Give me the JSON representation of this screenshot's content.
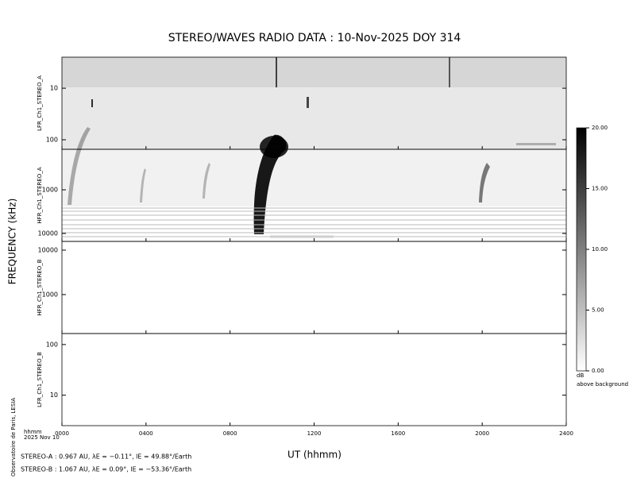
{
  "title": "STEREO/WAVES  RADIO  DATA : 10-Nov-2025  DOY 314",
  "y_label": "FREQUENCY (kHz)",
  "x_label": "UT (hhmm)",
  "corner_label": "hhmm",
  "date_label": "2025 Nov 10",
  "credit": "Observatoire de Paris, LESIA",
  "footer": [
    "STEREO-A : 0.967 AU, λE = −0.11°, lE = 49.88°/Earth",
    "STEREO-B : 1.067 AU, λE = 0.09°, lE = −53.36°/Earth"
  ],
  "chart_data": [
    {
      "type": "spectrogram",
      "name": "LFR_Ch1_STEREO_A",
      "log_y": true,
      "ylim": [
        153,
        2.5
      ],
      "yticks": [
        10,
        100
      ],
      "xlim": [
        0,
        24
      ],
      "xticks": [
        {
          "value": 0,
          "label": "0000"
        },
        {
          "value": 4,
          "label": "0400"
        },
        {
          "value": 8,
          "label": "0800"
        },
        {
          "value": 12,
          "label": "1200"
        },
        {
          "value": 16,
          "label": "1600"
        },
        {
          "value": 20,
          "label": "2000"
        },
        {
          "value": 24,
          "label": "2400"
        }
      ]
    },
    {
      "type": "spectrogram",
      "name": "HFR_Ch1_STEREO_A",
      "log_y": true,
      "ylim": [
        15200,
        118
      ],
      "yticks": [
        1000,
        10000
      ],
      "xlim": [
        0,
        24
      ],
      "xticks": [
        {
          "value": 0,
          "label": "0000"
        },
        {
          "value": 4,
          "label": "0400"
        },
        {
          "value": 8,
          "label": "0800"
        },
        {
          "value": 12,
          "label": "1200"
        },
        {
          "value": 16,
          "label": "1600"
        },
        {
          "value": 20,
          "label": "2000"
        },
        {
          "value": 24,
          "label": "2400"
        }
      ]
    },
    {
      "type": "spectrogram",
      "name": "HFR_Ch1_STEREO_B",
      "log_y": true,
      "ylim": [
        133,
        15700
      ],
      "yticks": [
        1000,
        10000
      ],
      "xlim": [
        0,
        24
      ],
      "xticks": [
        {
          "value": 0,
          "label": "0000"
        },
        {
          "value": 4,
          "label": "0400"
        },
        {
          "value": 8,
          "label": "0800"
        },
        {
          "value": 12,
          "label": "1200"
        },
        {
          "value": 16,
          "label": "1600"
        },
        {
          "value": 20,
          "label": "2000"
        },
        {
          "value": 24,
          "label": "2400"
        }
      ]
    },
    {
      "type": "spectrogram",
      "name": "LFR_Ch1_STEREO_B",
      "log_y": true,
      "ylim": [
        2.5,
        165
      ],
      "yticks": [
        10,
        100
      ],
      "xlim": [
        0,
        24
      ],
      "xticks": [
        {
          "value": 0,
          "label": "0000"
        },
        {
          "value": 4,
          "label": "0400"
        },
        {
          "value": 8,
          "label": "0800"
        },
        {
          "value": 12,
          "label": "1200"
        },
        {
          "value": 16,
          "label": "1600"
        },
        {
          "value": 20,
          "label": "2000"
        },
        {
          "value": 24,
          "label": "2400"
        }
      ]
    }
  ],
  "colorbar": {
    "lim": [
      0,
      20
    ],
    "ticks": [
      {
        "value": 20,
        "label": "20.00"
      },
      {
        "value": 15,
        "label": "15.00"
      },
      {
        "value": 10,
        "label": "10.00"
      },
      {
        "value": 5,
        "label": "5.00"
      },
      {
        "value": 0,
        "label": "0.00"
      }
    ],
    "unit": "dB",
    "caption": "above background"
  }
}
